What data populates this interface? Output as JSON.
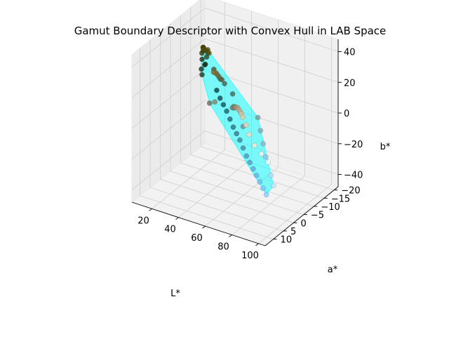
{
  "chart_data": {
    "type": "scatter3d",
    "title": "Gamut Boundary Descriptor with Convex Hull in LAB Space",
    "xlabel": "L*",
    "ylabel": "a*",
    "zlabel": "b*",
    "xlim": [
      5,
      105
    ],
    "ylim": [
      -22,
      14
    ],
    "zlim": [
      -48,
      48
    ],
    "xticks": [
      20,
      40,
      60,
      80,
      100
    ],
    "yticks": [
      -20,
      -15,
      -10,
      -5,
      0,
      5,
      10
    ],
    "zticks": [
      -40,
      -20,
      0,
      20,
      40
    ],
    "hull_color": "#00ffff",
    "hull_alpha": 0.5,
    "points": [
      [
        10,
        -18,
        20
      ],
      [
        12,
        -16,
        15
      ],
      [
        13,
        -15,
        10
      ],
      [
        14,
        -16,
        12
      ],
      [
        15,
        -14,
        8
      ],
      [
        16,
        -15,
        14
      ],
      [
        18,
        -12,
        25
      ],
      [
        20,
        -13,
        22
      ],
      [
        22,
        -10,
        30
      ],
      [
        24,
        -11,
        28
      ],
      [
        25,
        -8,
        35
      ],
      [
        26,
        -9,
        32
      ],
      [
        28,
        -6,
        38
      ],
      [
        30,
        -7,
        36
      ],
      [
        32,
        -4,
        40
      ],
      [
        34,
        -5,
        37
      ],
      [
        35,
        -12,
        10
      ],
      [
        36,
        -10,
        15
      ],
      [
        38,
        -8,
        18
      ],
      [
        40,
        -6,
        22
      ],
      [
        42,
        -4,
        26
      ],
      [
        44,
        -2,
        30
      ],
      [
        46,
        0,
        33
      ],
      [
        48,
        2,
        36
      ],
      [
        20,
        -18,
        -5
      ],
      [
        24,
        -17,
        -8
      ],
      [
        28,
        -16,
        -10
      ],
      [
        32,
        -15,
        -12
      ],
      [
        36,
        -14,
        -15
      ],
      [
        40,
        -13,
        -18
      ],
      [
        44,
        -12,
        -20
      ],
      [
        48,
        -11,
        -22
      ],
      [
        52,
        -10,
        -25
      ],
      [
        56,
        -9,
        -28
      ],
      [
        60,
        -8,
        -30
      ],
      [
        64,
        -7,
        -32
      ],
      [
        68,
        -6,
        -34
      ],
      [
        72,
        -5,
        -36
      ],
      [
        76,
        -4,
        -38
      ],
      [
        80,
        -3,
        -40
      ],
      [
        50,
        -6,
        5
      ],
      [
        54,
        -4,
        8
      ],
      [
        58,
        -2,
        12
      ],
      [
        62,
        0,
        15
      ],
      [
        66,
        2,
        18
      ],
      [
        70,
        4,
        20
      ],
      [
        74,
        6,
        22
      ],
      [
        78,
        8,
        24
      ],
      [
        82,
        10,
        25
      ],
      [
        86,
        11,
        22
      ],
      [
        90,
        12,
        18
      ],
      [
        94,
        12,
        12
      ],
      [
        96,
        10,
        5
      ],
      [
        98,
        8,
        -2
      ],
      [
        60,
        -12,
        -5
      ],
      [
        65,
        -10,
        -10
      ],
      [
        70,
        -8,
        -15
      ],
      [
        75,
        -6,
        -20
      ],
      [
        85,
        -2,
        -25
      ],
      [
        90,
        0,
        -28
      ],
      [
        45,
        -10,
        0
      ],
      [
        55,
        -8,
        -8
      ],
      [
        38,
        -14,
        2
      ],
      [
        42,
        0,
        12
      ],
      [
        52,
        4,
        20
      ],
      [
        30,
        -10,
        20
      ]
    ]
  }
}
